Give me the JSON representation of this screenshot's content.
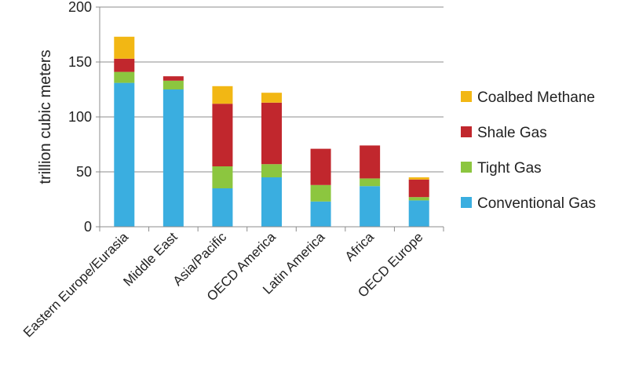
{
  "chart_data": {
    "type": "bar",
    "stacked": true,
    "title": "",
    "xlabel": "",
    "ylabel": "trillion cubic meters",
    "ylim": [
      0,
      200
    ],
    "yticks": [
      0,
      50,
      100,
      150,
      200
    ],
    "grid": "horizontal",
    "legend_position": "right",
    "categories": [
      "Eastern Europe/Eurasia",
      "Middle East",
      "Asia/Pacific",
      "OECD America",
      "Latin America",
      "Africa",
      "OECD Europe"
    ],
    "series": [
      {
        "name": "Conventional Gas",
        "color": "#3aaee0",
        "values": [
          131,
          125,
          35,
          45,
          23,
          37,
          24
        ]
      },
      {
        "name": "Tight Gas",
        "color": "#8cc63f",
        "values": [
          10,
          8,
          20,
          12,
          15,
          7,
          3
        ]
      },
      {
        "name": "Shale Gas",
        "color": "#c1272d",
        "values": [
          12,
          4,
          57,
          56,
          33,
          30,
          16
        ]
      },
      {
        "name": "Coalbed Methane",
        "color": "#f2b714",
        "values": [
          20,
          0,
          16,
          9,
          0,
          0,
          2
        ]
      }
    ],
    "legend_order": [
      "Coalbed Methane",
      "Shale Gas",
      "Tight Gas",
      "Conventional Gas"
    ]
  }
}
